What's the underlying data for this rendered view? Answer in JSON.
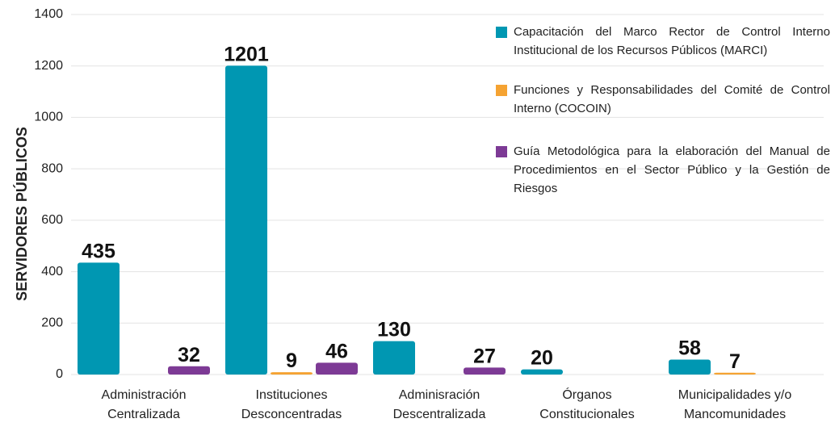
{
  "chart_data": {
    "type": "bar",
    "y_label": "SERVIDORES PÚBLICOS",
    "categories": [
      [
        "Administración",
        "Centralizada"
      ],
      [
        "Instituciones",
        "Desconcentradas"
      ],
      [
        "Adminisración",
        "Descentralizada"
      ],
      [
        "Órganos",
        "Constitucionales"
      ],
      [
        "Municipalidades y/o",
        "Mancomunidades"
      ]
    ],
    "series": [
      {
        "name": "Capacitación del Marco Rector de Control Interno Institucional de los Recursos Públicos (MARCI)",
        "color": "#0097b2",
        "values": [
          435,
          1201,
          130,
          20,
          58
        ]
      },
      {
        "name": "Funciones y Responsabilidades del Comité de Control Interno (COCOIN)",
        "color": "#f5a332",
        "values": [
          null,
          9,
          null,
          null,
          7
        ]
      },
      {
        "name": "Guía Metodológica para la elaboración del Manual de Procedimientos en el Sector Público y la Gestión de Riesgos",
        "color": "#7d3a95",
        "values": [
          32,
          46,
          27,
          null,
          null
        ]
      }
    ],
    "ylim": [
      0,
      1400
    ],
    "yticks": [
      0,
      200,
      400,
      600,
      800,
      1000,
      1200,
      1400
    ],
    "grid": true,
    "legend": "upper right"
  }
}
